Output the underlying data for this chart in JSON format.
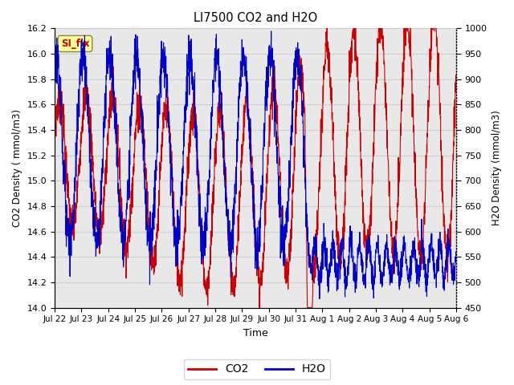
{
  "title": "LI7500 CO2 and H2O",
  "xlabel": "Time",
  "ylabel_left": "CO2 Density ( mmol/m3)",
  "ylabel_right": "H2O Density (mmol/m3)",
  "ylim_left": [
    14.0,
    16.2
  ],
  "ylim_right": [
    450,
    1000
  ],
  "yticks_left": [
    14.0,
    14.2,
    14.4,
    14.6,
    14.8,
    15.0,
    15.2,
    15.4,
    15.6,
    15.8,
    16.0,
    16.2
  ],
  "yticks_right": [
    450,
    500,
    550,
    600,
    650,
    700,
    750,
    800,
    850,
    900,
    950,
    1000
  ],
  "xtick_labels": [
    "Jul 22",
    "Jul 23",
    "Jul 24",
    "Jul 25",
    "Jul 26",
    "Jul 27",
    "Jul 28",
    "Jul 29",
    "Jul 30",
    "Jul 31",
    "Aug 1",
    "Aug 2",
    "Aug 3",
    "Aug 4",
    "Aug 5",
    "Aug 6"
  ],
  "co2_color": "#cc0000",
  "h2o_color": "#0000cc",
  "legend_label_co2": "CO2",
  "legend_label_h2o": "H2O",
  "annotation_text": "SI_flx",
  "annotation_color": "#cc0000",
  "annotation_bg": "#ffff99",
  "grid_color": "#d0d0d0",
  "bg_color": "#e8e8e8",
  "n_days": 15,
  "seed": 7
}
